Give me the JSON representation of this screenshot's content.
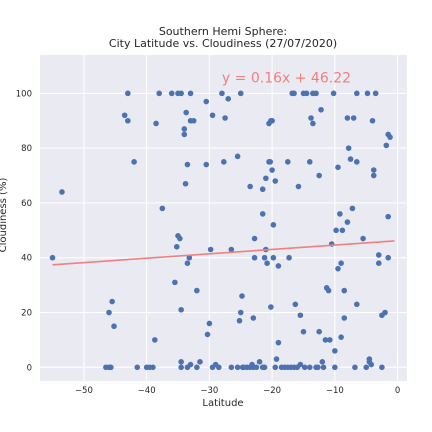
{
  "chart_data": {
    "type": "scatter",
    "title_line1": "Southern Hemi Sphere:",
    "title_line2": "City Latitude vs. Cloudiness (27/07/2020)",
    "xlabel": "Latitude",
    "ylabel": "Cloudiness (%)",
    "xlim": [
      -57,
      1.5
    ],
    "ylim": [
      -5,
      114
    ],
    "xticks": [
      -50,
      -40,
      -30,
      -20,
      -10,
      0
    ],
    "yticks": [
      0,
      20,
      40,
      60,
      80,
      100
    ],
    "grid": true,
    "background": "#eaeaf2",
    "point_color": "#4c72b0",
    "line_color": "#f08080",
    "regression": {
      "equation": "y = 0.16x + 46.22",
      "slope": 0.16,
      "intercept": 46.22,
      "x_range": [
        -55,
        -0.5
      ],
      "label_x": -28,
      "label_y": 104
    },
    "points": [
      [
        -55,
        40
      ],
      [
        -53.5,
        64
      ],
      [
        -46.5,
        0
      ],
      [
        -46,
        0
      ],
      [
        -45.7,
        0
      ],
      [
        -46,
        20
      ],
      [
        -45.5,
        24
      ],
      [
        -45.2,
        15
      ],
      [
        -43.5,
        92
      ],
      [
        -43,
        100
      ],
      [
        -43,
        90
      ],
      [
        -42,
        75
      ],
      [
        -41.5,
        0
      ],
      [
        -40,
        0
      ],
      [
        -39.5,
        0
      ],
      [
        -39,
        0
      ],
      [
        -38.7,
        10
      ],
      [
        -38.5,
        89
      ],
      [
        -38,
        100
      ],
      [
        -37.5,
        58
      ],
      [
        -36,
        100
      ],
      [
        -35.5,
        31
      ],
      [
        -35.2,
        44
      ],
      [
        -35,
        48
      ],
      [
        -35,
        100
      ],
      [
        -34.7,
        47
      ],
      [
        -34.5,
        21
      ],
      [
        -34.5,
        100
      ],
      [
        -34,
        85
      ],
      [
        -34,
        87
      ],
      [
        -33.8,
        67
      ],
      [
        -33.7,
        93
      ],
      [
        -33.5,
        74
      ],
      [
        -33.5,
        0
      ],
      [
        -33.5,
        38
      ],
      [
        -33.2,
        40
      ],
      [
        -33,
        90
      ],
      [
        -33,
        100
      ],
      [
        -33,
        1
      ],
      [
        -32.5,
        90
      ],
      [
        -32,
        28
      ],
      [
        -31.5,
        2
      ],
      [
        -32,
        0
      ],
      [
        -34.5,
        2
      ],
      [
        -34.5,
        0
      ],
      [
        -30.5,
        74
      ],
      [
        -30.5,
        97
      ],
      [
        -30.3,
        12
      ],
      [
        -30,
        16
      ],
      [
        -29.8,
        43
      ],
      [
        -29.5,
        0
      ],
      [
        -29.5,
        92
      ],
      [
        -28.5,
        0
      ],
      [
        -28,
        100
      ],
      [
        -27.7,
        75
      ],
      [
        -27.5,
        91
      ],
      [
        -27,
        98
      ],
      [
        -26.5,
        0
      ],
      [
        -26.5,
        43
      ],
      [
        -25.5,
        0
      ],
      [
        -25.5,
        77
      ],
      [
        -25,
        100
      ],
      [
        -25.2,
        17
      ],
      [
        -25,
        20
      ],
      [
        -24.8,
        26
      ],
      [
        -24.7,
        0
      ],
      [
        -24.5,
        0
      ],
      [
        -24,
        0
      ],
      [
        -23.5,
        0
      ],
      [
        -23.5,
        66
      ],
      [
        -23.2,
        1
      ],
      [
        -23,
        0
      ],
      [
        -23,
        18
      ],
      [
        -22.8,
        47
      ],
      [
        -22.8,
        40
      ],
      [
        -22.5,
        0
      ],
      [
        -22,
        2
      ],
      [
        -21.5,
        0
      ],
      [
        -21.5,
        56
      ],
      [
        -21.5,
        65
      ],
      [
        -21.2,
        0
      ],
      [
        -21.2,
        40
      ],
      [
        -21,
        69
      ],
      [
        -21,
        43
      ],
      [
        -20.8,
        38
      ],
      [
        -20.5,
        75
      ],
      [
        -20.5,
        89
      ],
      [
        -20.2,
        90
      ],
      [
        -20.2,
        22
      ],
      [
        -20.3,
        75
      ],
      [
        -20,
        72
      ],
      [
        -20,
        90
      ],
      [
        -19.8,
        40
      ],
      [
        -19.8,
        52
      ],
      [
        -19.5,
        0
      ],
      [
        -19.5,
        68
      ],
      [
        -19.3,
        3
      ],
      [
        -19,
        9
      ],
      [
        -19,
        37
      ],
      [
        -18.5,
        0
      ],
      [
        -18,
        0
      ],
      [
        -17.5,
        75
      ],
      [
        -17.5,
        0
      ],
      [
        -17.3,
        40
      ],
      [
        -17,
        0
      ],
      [
        -16.8,
        100
      ],
      [
        -16.5,
        100
      ],
      [
        -16.5,
        0
      ],
      [
        -16.3,
        23
      ],
      [
        -16,
        0
      ],
      [
        -15.8,
        66
      ],
      [
        -15.5,
        19
      ],
      [
        -15.5,
        1
      ],
      [
        -15,
        100
      ],
      [
        -15,
        13
      ],
      [
        -14.8,
        0
      ],
      [
        -14.5,
        100
      ],
      [
        -14,
        0
      ],
      [
        -14,
        75
      ],
      [
        -13.8,
        91
      ],
      [
        -13.5,
        100
      ],
      [
        -13.5,
        89
      ],
      [
        -13,
        0
      ],
      [
        -13,
        100
      ],
      [
        -12.7,
        0
      ],
      [
        -12.5,
        70
      ],
      [
        -12.5,
        13
      ],
      [
        -12.2,
        94
      ],
      [
        -12,
        2
      ],
      [
        -11.8,
        0
      ],
      [
        -11.5,
        10
      ],
      [
        -11.3,
        29
      ],
      [
        -11,
        28
      ],
      [
        -10.8,
        10
      ],
      [
        -10.5,
        45
      ],
      [
        -10.2,
        100
      ],
      [
        -10,
        0
      ],
      [
        -10,
        6
      ],
      [
        -9.8,
        50
      ],
      [
        -9.5,
        73
      ],
      [
        -9.5,
        36
      ],
      [
        -9.2,
        56
      ],
      [
        -9,
        38
      ],
      [
        -9,
        11
      ],
      [
        -8.8,
        50
      ],
      [
        -8.5,
        18
      ],
      [
        -8.5,
        28
      ],
      [
        -8,
        91
      ],
      [
        -8,
        53
      ],
      [
        -7.8,
        80
      ],
      [
        -7.5,
        76
      ],
      [
        -7.2,
        58
      ],
      [
        -7,
        91
      ],
      [
        -6.8,
        0
      ],
      [
        -6.5,
        75
      ],
      [
        -6.5,
        100
      ],
      [
        -6.5,
        23
      ],
      [
        -5.5,
        47
      ],
      [
        -5,
        0
      ],
      [
        -4.8,
        100
      ],
      [
        -4.5,
        3
      ],
      [
        -4.5,
        2
      ],
      [
        -4.2,
        1
      ],
      [
        -4,
        90
      ],
      [
        -3.8,
        70
      ],
      [
        -3.8,
        72
      ],
      [
        -3.5,
        100
      ],
      [
        -3,
        41
      ],
      [
        -3,
        38
      ],
      [
        -2.5,
        0
      ],
      [
        -2.5,
        19
      ],
      [
        -2,
        20
      ],
      [
        -1.5,
        40
      ],
      [
        -1.5,
        55
      ],
      [
        -1.8,
        81
      ],
      [
        -1.5,
        85
      ],
      [
        -1.2,
        84
      ],
      [
        -29,
        1
      ]
    ]
  }
}
